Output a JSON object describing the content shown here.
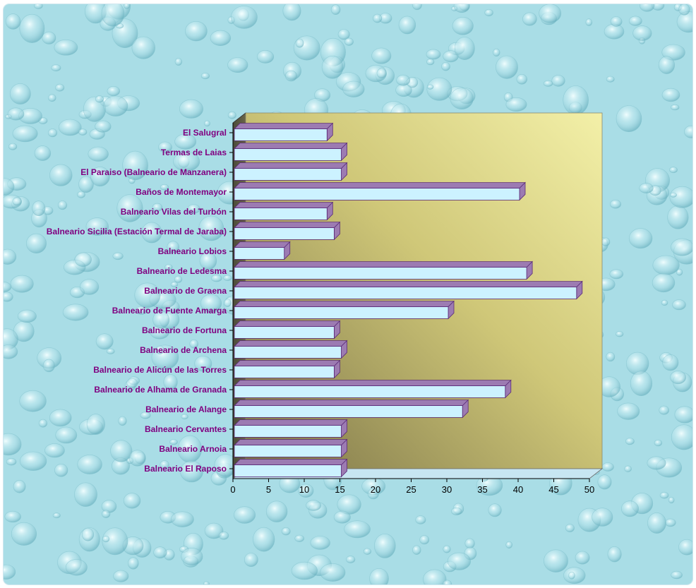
{
  "colors": {
    "background": "#a9dde6",
    "wall_light": "#f3f0a8",
    "wall_dark": "#7c7448",
    "floor": "#c7e6f2",
    "bar_front": "#ccf2ff",
    "bar_side": "#9c7bb2",
    "bar_outline": "#5a2a78",
    "category_label": "#800080"
  },
  "chart_data": {
    "type": "bar",
    "orientation": "horizontal",
    "style": "3d",
    "categories": [
      "El Salugral",
      "Termas de Laias",
      "El Paraiso (Balneario de Manzanera)",
      "Baños de Montemayor",
      "Balneario Vilas del Turbón",
      "Balneario Sicilia (Estación Termal de Jaraba)",
      "Balneario Lobios",
      "Balneario de Ledesma",
      "Balneario de Graena",
      "Balneario de Fuente Amarga",
      "Balneario de Fortuna",
      "Balneario de Archena",
      "Balneario de Alicún de las Torres",
      "Balneario de Alhama de Granada",
      "Balneario de Alange",
      "Balneario Cervantes",
      "Balneario Arnoia",
      "Balneario  El Raposo"
    ],
    "values": [
      13,
      15,
      15,
      40,
      13,
      14,
      7,
      41,
      48,
      30,
      14,
      15,
      14,
      38,
      32,
      15,
      15,
      15
    ],
    "xlim": [
      0,
      50
    ],
    "xticks": [
      0,
      5,
      10,
      15,
      20,
      25,
      30,
      35,
      40,
      45,
      50
    ],
    "title": "",
    "xlabel": "",
    "ylabel": "",
    "grid": false,
    "legend": "none"
  }
}
